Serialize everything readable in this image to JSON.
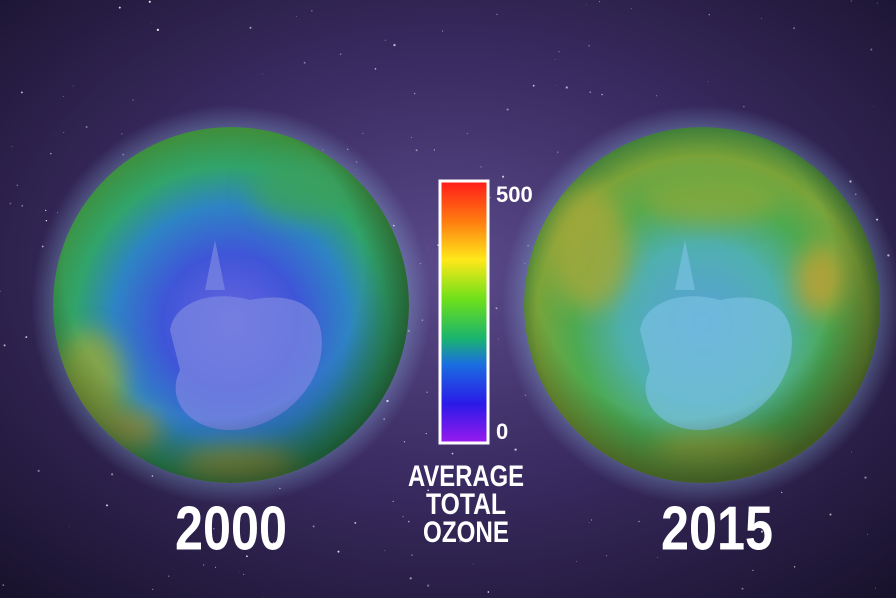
{
  "globes": [
    {
      "year": "2000"
    },
    {
      "year": "2015"
    }
  ],
  "colorbar": {
    "max": "500",
    "min": "0",
    "label": [
      "AVERAGE",
      "TOTAL",
      "OZONE"
    ]
  }
}
